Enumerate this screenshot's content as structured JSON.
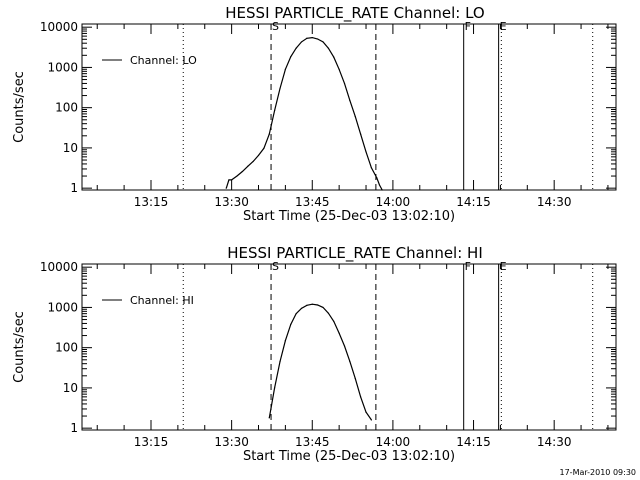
{
  "footer": "17-Mar-2010 09:30",
  "chart_data": [
    {
      "type": "line",
      "title": "HESSI PARTICLE_RATE Channel: LO",
      "xlabel": "Start Time (25-Dec-03 13:02:10)",
      "ylabel": "Counts/sec",
      "yscale": "log",
      "ylim": [
        0.9,
        12000
      ],
      "xlim": [
        "13:02:10",
        "14:41:30"
      ],
      "x_ticks": [
        "13:15",
        "13:30",
        "13:45",
        "14:00",
        "14:15",
        "14:30"
      ],
      "y_ticks": [
        "1",
        "10",
        "100",
        "1000",
        "10000"
      ],
      "legend": "top-left",
      "series": [
        {
          "name": "Channel: LO",
          "x": [
            "13:29:00",
            "13:29:30",
            "13:30:00",
            "13:31:00",
            "13:32:00",
            "13:33:00",
            "13:34:00",
            "13:35:00",
            "13:36:00",
            "13:37:00",
            "13:38:00",
            "13:39:00",
            "13:40:00",
            "13:41:00",
            "13:42:00",
            "13:43:00",
            "13:44:00",
            "13:45:00",
            "13:46:00",
            "13:47:00",
            "13:48:00",
            "13:49:00",
            "13:50:00",
            "13:51:00",
            "13:52:00",
            "13:53:00",
            "13:54:00",
            "13:55:00",
            "13:56:00",
            "13:57:00",
            "13:57:30",
            "13:58:00"
          ],
          "y": [
            1,
            1.6,
            1.6,
            2,
            2.6,
            3.5,
            4.6,
            6.5,
            9.8,
            22,
            85,
            300,
            900,
            1850,
            3000,
            4300,
            5300,
            5500,
            5100,
            4300,
            3000,
            1800,
            900,
            400,
            150,
            60,
            22,
            8,
            3.2,
            1.8,
            1.2,
            0.9
          ]
        }
      ],
      "markers": [
        {
          "label": "S",
          "time": "13:37:20",
          "style": "dashed"
        },
        {
          "label": "",
          "time": "13:56:50",
          "style": "dashed"
        },
        {
          "label": "F",
          "time": "14:13:10",
          "style": "solid"
        },
        {
          "label": "E",
          "time": "14:19:40",
          "style": "solid"
        }
      ],
      "dotted_lines": [
        "13:02:10",
        "13:21:00",
        "14:20:10",
        "14:37:10"
      ]
    },
    {
      "type": "line",
      "title": "HESSI PARTICLE_RATE Channel: HI",
      "xlabel": "Start Time (25-Dec-03 13:02:10)",
      "ylabel": "Counts/sec",
      "yscale": "log",
      "ylim": [
        0.9,
        12000
      ],
      "xlim": [
        "13:02:10",
        "14:41:30"
      ],
      "x_ticks": [
        "13:15",
        "13:30",
        "13:45",
        "14:00",
        "14:15",
        "14:30"
      ],
      "y_ticks": [
        "1",
        "10",
        "100",
        "1000",
        "10000"
      ],
      "legend": "top-left",
      "series": [
        {
          "name": "Channel: HI",
          "x": [
            "13:37:00",
            "13:38:00",
            "13:39:00",
            "13:40:00",
            "13:41:00",
            "13:42:00",
            "13:43:00",
            "13:44:00",
            "13:45:00",
            "13:46:00",
            "13:47:00",
            "13:48:00",
            "13:49:00",
            "13:50:00",
            "13:51:00",
            "13:52:00",
            "13:53:00",
            "13:54:00",
            "13:55:00",
            "13:56:00"
          ],
          "y": [
            1.8,
            10,
            45,
            150,
            380,
            700,
            950,
            1130,
            1200,
            1150,
            1000,
            720,
            450,
            230,
            110,
            45,
            17,
            6,
            2.5,
            1.6
          ]
        }
      ],
      "markers": [
        {
          "label": "S",
          "time": "13:37:20",
          "style": "dashed"
        },
        {
          "label": "",
          "time": "13:56:50",
          "style": "dashed"
        },
        {
          "label": "F",
          "time": "14:13:10",
          "style": "solid"
        },
        {
          "label": "E",
          "time": "14:19:40",
          "style": "solid"
        }
      ],
      "dotted_lines": [
        "13:02:10",
        "13:21:00",
        "14:20:10",
        "14:37:10"
      ]
    }
  ]
}
